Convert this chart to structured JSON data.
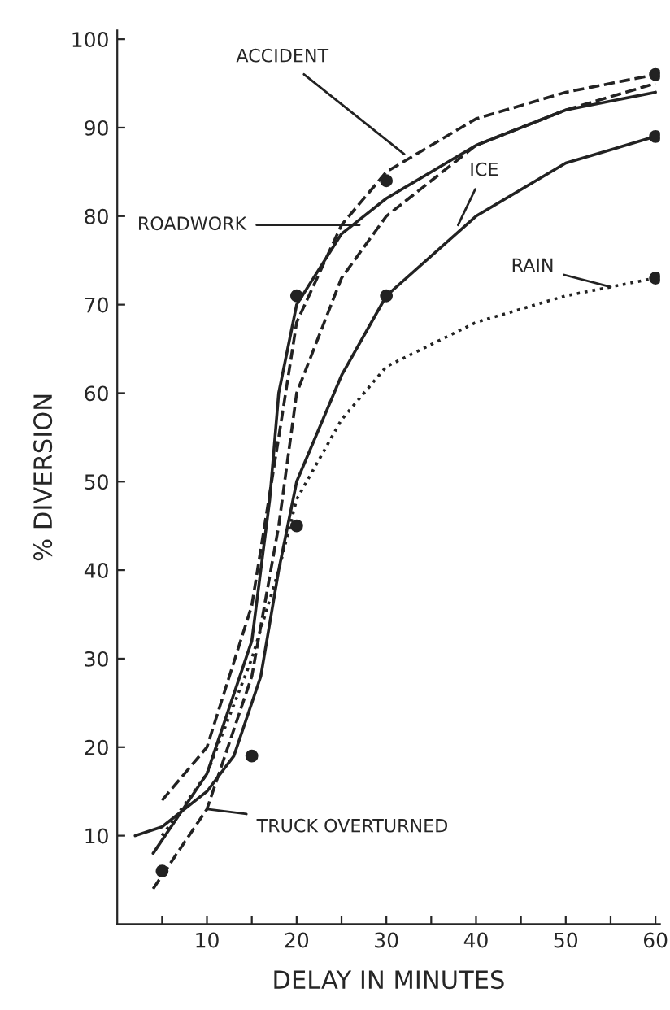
{
  "chart_data": {
    "type": "line",
    "xlabel": "DELAY IN MINUTES",
    "ylabel": "% DIVERSION",
    "xlim": [
      0,
      60.5
    ],
    "ylim": [
      0,
      101
    ],
    "xticks": [
      {
        "value": 5,
        "label": null
      },
      10,
      {
        "value": 15,
        "label": null
      },
      20,
      {
        "value": 25,
        "label": null
      },
      30,
      {
        "value": 35,
        "label": null
      },
      40,
      {
        "value": 45,
        "label": null
      },
      50,
      {
        "value": 55,
        "label": null
      },
      60
    ],
    "yticks": [
      10,
      20,
      30,
      40,
      50,
      60,
      70,
      80,
      90,
      100
    ],
    "grid": false,
    "legend": false,
    "series": [
      {
        "color": "#222222",
        "line_style": "dashed",
        "x": [
          5,
          10,
          15,
          18,
          20,
          25,
          30,
          40,
          50,
          60
        ],
        "values": [
          14,
          20,
          36,
          55,
          68,
          79,
          85,
          91,
          94,
          96
        ]
      },
      {
        "color": "#222222",
        "line_style": "solid",
        "x": [
          4,
          10,
          15,
          17,
          18,
          20,
          25,
          30,
          40,
          50,
          60
        ],
        "values": [
          8,
          17,
          32,
          48,
          60,
          70,
          78,
          82,
          88,
          92,
          94
        ]
      },
      {
        "color": "#222222",
        "line_style": "dashed",
        "x": [
          4,
          10,
          15,
          18,
          20,
          25,
          30,
          40,
          50,
          60
        ],
        "values": [
          4,
          13,
          28,
          45,
          60,
          73,
          80,
          88,
          92,
          95
        ]
      },
      {
        "color": "#222222",
        "line_style": "solid",
        "x": [
          2,
          5,
          10,
          13,
          16,
          18,
          20,
          25,
          30,
          40,
          50,
          60
        ],
        "values": [
          10,
          11,
          15,
          19,
          28,
          40,
          50,
          62,
          71,
          80,
          86,
          89
        ]
      },
      {
        "color": "#222222",
        "line_style": "dotted",
        "x": [
          5,
          10,
          15,
          18,
          20,
          25,
          30,
          40,
          50,
          60
        ],
        "values": [
          10,
          17,
          30,
          40,
          48,
          57,
          63,
          68,
          71,
          73
        ]
      },
      {
        "type": "scatter",
        "color": "#222222",
        "marker": "circle",
        "x": [
          5,
          15,
          20,
          20,
          30,
          30,
          60,
          60,
          60
        ],
        "values": [
          6,
          19,
          45,
          71,
          84,
          71,
          96,
          89,
          73
        ]
      }
    ],
    "annotations": [
      {
        "text": "ACCIDENT",
        "x": 32,
        "y": 87
      },
      {
        "text": "ROADWORK",
        "x": 27,
        "y": 79
      },
      {
        "text": "ICE",
        "x": 38,
        "y": 79
      },
      {
        "text": "RAIN",
        "x": 55,
        "y": 72
      },
      {
        "text": "TRUCK OVERTURNED",
        "x": 10,
        "y": 13
      }
    ]
  }
}
